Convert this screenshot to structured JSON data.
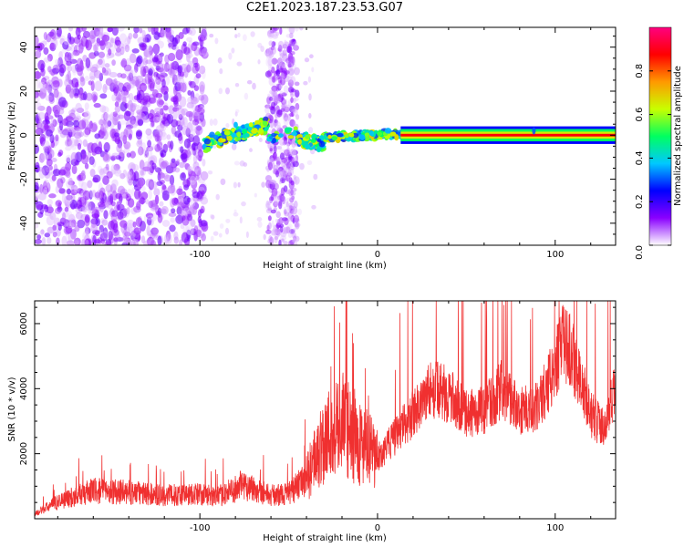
{
  "title": "C2E1.2023.187.23.53.G07",
  "chart_data": [
    {
      "type": "heatmap",
      "xlabel": "Height of straight line (km)",
      "ylabel": "Frequency (Hz)",
      "xlim": [
        -193,
        134
      ],
      "ylim": [
        -50,
        49
      ],
      "x_ticks": [
        -100,
        0,
        100
      ],
      "y_ticks": [
        -40,
        -20,
        0,
        20,
        40
      ],
      "colorbar": {
        "label": "Normalized spectral amplitude",
        "range": [
          0.0,
          1.0
        ],
        "ticks": [
          0.0,
          0.2,
          0.4,
          0.6,
          0.8
        ],
        "colors": [
          "#ffffff",
          "#8a00ff",
          "#0000ff",
          "#00c8ff",
          "#00ff60",
          "#c8ff00",
          "#ff9900",
          "#ff0000",
          "#ff0080"
        ]
      },
      "features": {
        "noise_dense_region_x": [
          -193,
          -97
        ],
        "noise_sparse_band_x": [
          -62,
          -45
        ],
        "ridge_start_x": -97,
        "ridge_steady_from_x": 13,
        "ridge_frequency_hz": 0,
        "ridge_value_steady": 0.85
      }
    },
    {
      "type": "line",
      "xlabel": "Height of straight line (km)",
      "ylabel": "SNR (10 * v/v)",
      "xlim": [
        -193,
        134
      ],
      "ylim": [
        0,
        6700
      ],
      "x_ticks": [
        -100,
        0,
        100
      ],
      "y_ticks": [
        2000,
        4000,
        6000
      ],
      "color": "#f03030",
      "envelope": {
        "x": [
          -193,
          -180,
          -160,
          -140,
          -120,
          -100,
          -90,
          -75,
          -60,
          -50,
          -40,
          -30,
          -20,
          -10,
          0,
          10,
          20,
          30,
          40,
          50,
          60,
          70,
          80,
          90,
          100,
          105,
          110,
          120,
          128,
          134
        ],
        "y": [
          150,
          550,
          900,
          850,
          750,
          800,
          700,
          1100,
          750,
          800,
          1300,
          2600,
          3100,
          2500,
          1900,
          2600,
          3300,
          4100,
          3900,
          3300,
          3400,
          4100,
          3400,
          3500,
          4800,
          5600,
          5100,
          3300,
          2800,
          4100
        ]
      }
    }
  ]
}
